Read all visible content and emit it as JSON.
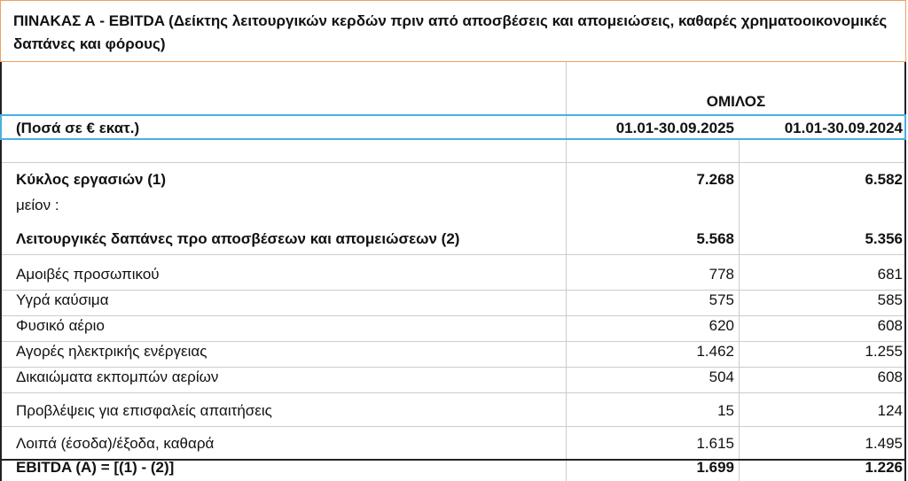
{
  "header": {
    "title": "ΠΙΝΑΚΑΣ Α - EBITDA (Δείκτης λειτουργικών κερδών πριν από αποσβέσεις και απομειώσεις, καθαρές χρηματοοικονομικές δαπάνες και φόρους)"
  },
  "table": {
    "group": "ΟΜΙΛΟΣ",
    "unit": "(Ποσά σε € εκατ.)",
    "columns": [
      "01.01-30.09.2025",
      "01.01-30.09.2024"
    ],
    "rows": [
      [
        "Κύκλος εργασιών (1)",
        "7.268",
        "6.582"
      ],
      [
        "μείον :"
      ],
      [
        "Λειτουργικές δαπάνες προ αποσβέσεων και απομειώσεων (2)",
        "5.568",
        "5.356"
      ],
      [
        "Αμοιβές προσωπικού",
        "778",
        "681"
      ],
      [
        "Υγρά καύσιμα",
        "575",
        "585"
      ],
      [
        "Φυσικό αέριο",
        "620",
        "608"
      ],
      [
        "Αγορές ηλεκτρικής ενέργειας",
        "1.462",
        "1.255"
      ],
      [
        "Δικαιώματα εκπομπών αερίων",
        "504",
        "608"
      ],
      [
        "Προβλέψεις για επισφαλείς απαιτήσεις",
        "15",
        "124"
      ],
      [
        "Λοιπά (έσοδα)/έξοδα, καθαρά",
        "1.615",
        "1.495"
      ],
      [
        "EBITDA (A) = [(1) - (2)]",
        "1.699",
        "1.226"
      ]
    ]
  }
}
